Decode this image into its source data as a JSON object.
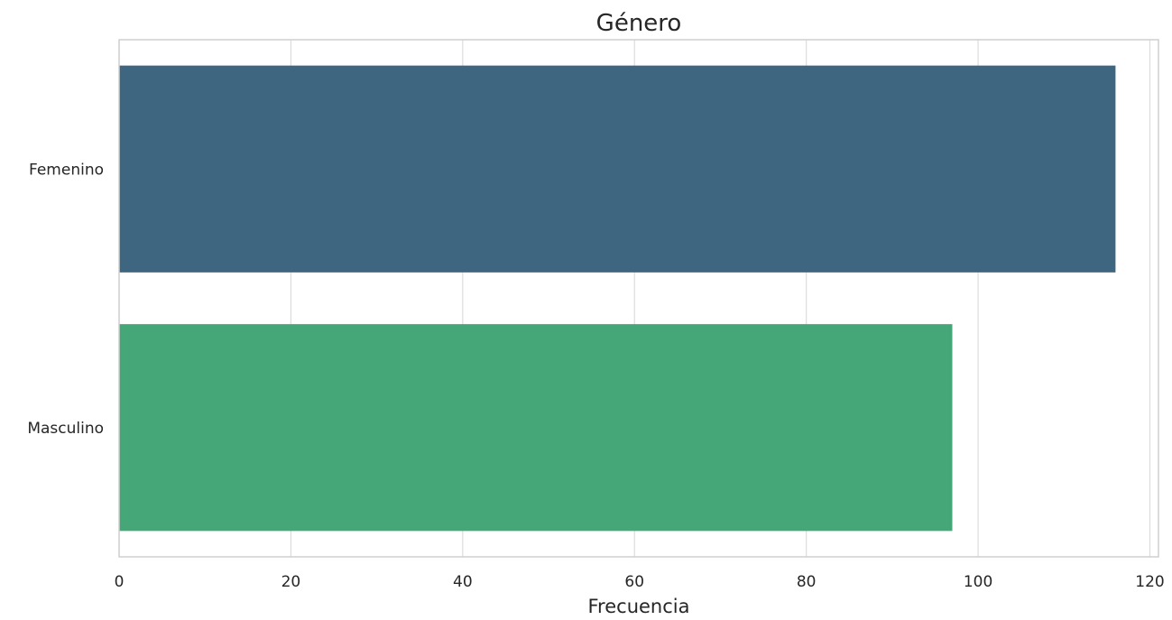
{
  "chart_data": {
    "type": "bar",
    "orientation": "horizontal",
    "title": "Género",
    "xlabel": "Frecuencia",
    "ylabel": "",
    "categories": [
      "Femenino",
      "Masculino"
    ],
    "values": [
      116,
      97
    ],
    "colors": [
      "#3e6680",
      "#45a777"
    ],
    "xlim": [
      0,
      121
    ],
    "xticks": [
      0,
      20,
      40,
      60,
      80,
      100,
      120
    ],
    "xtick_labels": [
      "0",
      "20",
      "40",
      "60",
      "80",
      "100",
      "120"
    ],
    "grid": "vertical",
    "legend": "none"
  }
}
